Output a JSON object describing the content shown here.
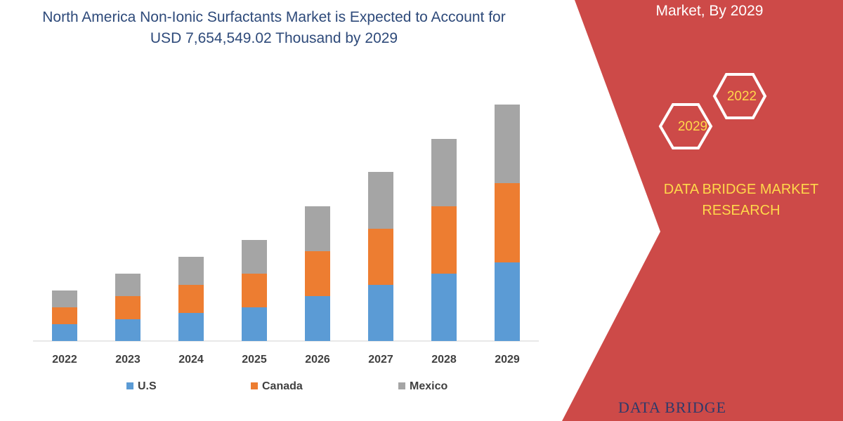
{
  "chart_data": {
    "type": "stacked_bar",
    "title": "North America Non-Ionic Surfactants Market is Expected to Account for USD 7,654,549.02 Thousand by 2029",
    "categories": [
      "2022",
      "2023",
      "2024",
      "2025",
      "2026",
      "2027",
      "2028",
      "2029"
    ],
    "series": [
      {
        "name": "U.S",
        "color": "#5b9bd5",
        "values": [
          24,
          31,
          40,
          48,
          64,
          80,
          96,
          112
        ]
      },
      {
        "name": "Canada",
        "color": "#ed7d31",
        "values": [
          24,
          33,
          40,
          48,
          64,
          80,
          96,
          113
        ]
      },
      {
        "name": "Mexico",
        "color": "#a5a5a5",
        "values": [
          24,
          32,
          40,
          48,
          64,
          81,
          96,
          112
        ]
      }
    ]
  },
  "panel": {
    "heading": "Market, By 2029",
    "hexagons": [
      "2022",
      "2029"
    ],
    "brand": "DATA BRIDGE MARKET RESEARCH",
    "logo": "DATA BRIDGE"
  }
}
